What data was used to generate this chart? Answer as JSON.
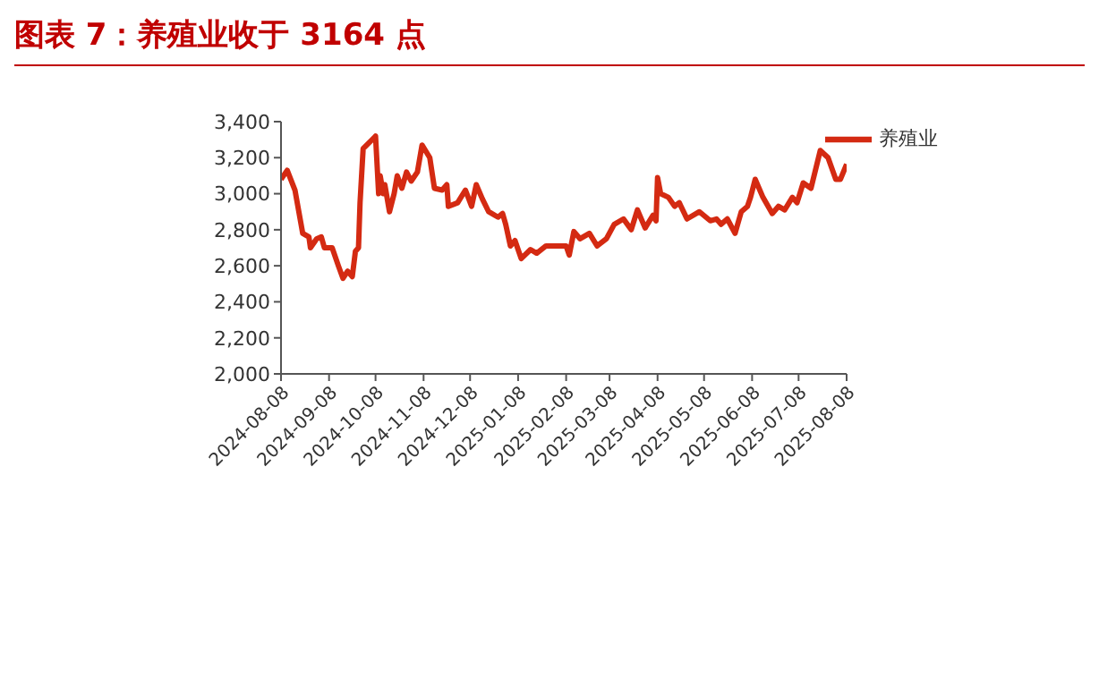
{
  "chart_data": {
    "type": "line",
    "title": "图表 7：养殖业收于 3164 点",
    "x": [
      "2024-08-08",
      "2024-08-12",
      "2024-08-17",
      "2024-08-22",
      "2024-08-26",
      "2024-08-27",
      "2024-08-31",
      "2024-09-03",
      "2024-09-05",
      "2024-09-10",
      "2024-09-14",
      "2024-09-17",
      "2024-09-20",
      "2024-09-23",
      "2024-09-25",
      "2024-09-27",
      "2024-09-28",
      "2024-09-30",
      "2024-10-07",
      "2024-10-08",
      "2024-10-10",
      "2024-10-11",
      "2024-10-13",
      "2024-10-14",
      "2024-10-17",
      "2024-10-20",
      "2024-10-22",
      "2024-10-25",
      "2024-10-28",
      "2024-10-31",
      "2024-11-04",
      "2024-11-07",
      "2024-11-12",
      "2024-11-15",
      "2024-11-20",
      "2024-11-23",
      "2024-11-24",
      "2024-11-30",
      "2024-12-05",
      "2024-12-09",
      "2024-12-12",
      "2024-12-16",
      "2024-12-20",
      "2024-12-26",
      "2024-12-29",
      "2024-12-31",
      "2025-01-03",
      "2025-01-06",
      "2025-01-10",
      "2025-01-16",
      "2025-01-20",
      "2025-01-26",
      "2025-02-08",
      "2025-02-10",
      "2025-02-13",
      "2025-02-17",
      "2025-02-23",
      "2025-02-28",
      "2025-03-06",
      "2025-03-11",
      "2025-03-17",
      "2025-03-22",
      "2025-03-26",
      "2025-03-31",
      "2025-04-05",
      "2025-04-07",
      "2025-04-08",
      "2025-04-10",
      "2025-04-15",
      "2025-04-19",
      "2025-04-22",
      "2025-04-27",
      "2025-05-05",
      "2025-05-12",
      "2025-05-16",
      "2025-05-19",
      "2025-05-23",
      "2025-05-28",
      "2025-06-01",
      "2025-06-05",
      "2025-06-07",
      "2025-06-10",
      "2025-06-15",
      "2025-06-21",
      "2025-06-25",
      "2025-06-29",
      "2025-07-04",
      "2025-07-07",
      "2025-07-11",
      "2025-07-16",
      "2025-07-22",
      "2025-07-27",
      "2025-08-01",
      "2025-08-04",
      "2025-08-08"
    ],
    "series": [
      {
        "name": "养殖业",
        "color": "#d42a12",
        "values": [
          3080,
          3130,
          3020,
          2780,
          2760,
          2700,
          2750,
          2760,
          2700,
          2700,
          2600,
          2530,
          2570,
          2540,
          2680,
          2700,
          2950,
          3250,
          3310,
          3320,
          3000,
          3100,
          3000,
          3050,
          2900,
          3000,
          3100,
          3030,
          3120,
          3070,
          3120,
          3270,
          3200,
          3030,
          3020,
          3050,
          2930,
          2950,
          3020,
          2930,
          3050,
          2970,
          2900,
          2870,
          2890,
          2830,
          2710,
          2740,
          2640,
          2690,
          2670,
          2710,
          2710,
          2660,
          2790,
          2750,
          2780,
          2710,
          2750,
          2830,
          2860,
          2800,
          2910,
          2810,
          2880,
          2850,
          3090,
          3000,
          2980,
          2930,
          2950,
          2860,
          2900,
          2850,
          2860,
          2830,
          2860,
          2780,
          2900,
          2930,
          2980,
          3080,
          2980,
          2890,
          2930,
          2910,
          2980,
          2950,
          3060,
          3030,
          3240,
          3200,
          3080,
          3080,
          3164
        ]
      }
    ],
    "ylim": [
      2000,
      3400
    ],
    "yticks": [
      {
        "value": 2000,
        "label": "2,000"
      },
      {
        "value": 2200,
        "label": "2,200"
      },
      {
        "value": 2400,
        "label": "2,400"
      },
      {
        "value": 2600,
        "label": "2,600"
      },
      {
        "value": 2800,
        "label": "2,800"
      },
      {
        "value": 3000,
        "label": "3,000"
      },
      {
        "value": 3200,
        "label": "3,200"
      },
      {
        "value": 3400,
        "label": "3,400"
      }
    ],
    "xlim": [
      "2024-08-08",
      "2025-08-08"
    ],
    "xticks": [
      "2024-08-08",
      "2024-09-08",
      "2024-10-08",
      "2024-11-08",
      "2024-12-08",
      "2025-01-08",
      "2025-02-08",
      "2025-03-08",
      "2025-04-08",
      "2025-05-08",
      "2025-06-08",
      "2025-07-08",
      "2025-08-08"
    ],
    "grid": false,
    "legend": "top right",
    "marker": "none",
    "line_style": "solid"
  }
}
